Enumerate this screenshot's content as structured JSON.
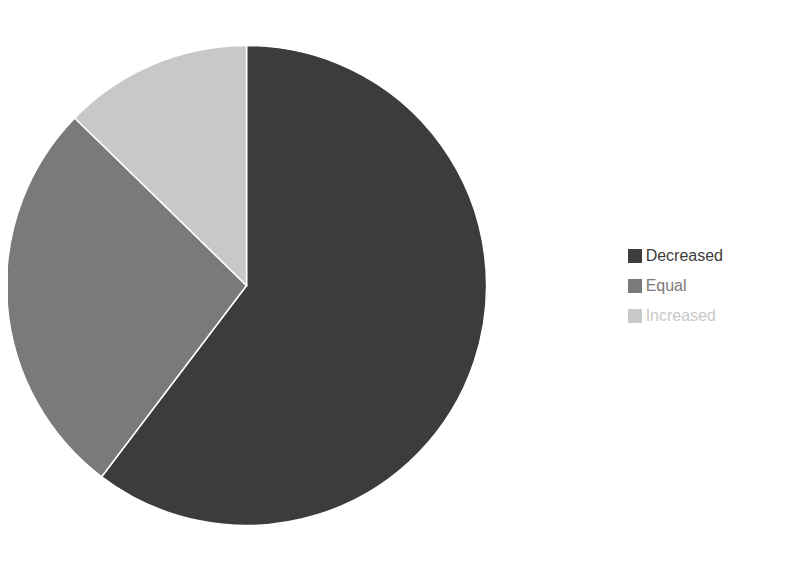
{
  "chart_data": {
    "type": "pie",
    "categories": [
      "Decreased",
      "Equal",
      "Increased"
    ],
    "values": [
      38,
      17,
      8
    ],
    "colors": [
      "#3c3c3c",
      "#7a7a7a",
      "#c8c8c8"
    ],
    "legend": "right"
  }
}
